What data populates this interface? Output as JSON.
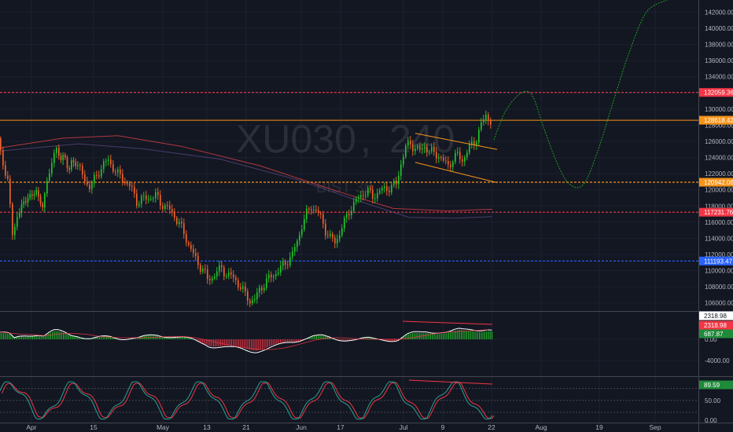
{
  "colors": {
    "background": "#131722",
    "grid": "#1c2030",
    "up": "#22c02a",
    "down": "#e8612c",
    "text": "#b2b5be",
    "red_line": "#f23645",
    "orange_line": "#f7931a",
    "blue_line": "#2962ff",
    "projection": "#1fa01f",
    "channel": "#f7931a"
  },
  "watermark": {
    "symbol": "XU030",
    "interval": "240",
    "exchange": "BIST 30"
  },
  "chart_data": [
    {
      "name": "price",
      "type": "line",
      "ylim": [
        105000,
        143500
      ],
      "y_ticks": [
        "142000.00",
        "140000.00",
        "138000.00",
        "136000.00",
        "134000.00",
        "132000.00",
        "130000.00",
        "128000.00",
        "126000.00",
        "124000.00",
        "122000.00",
        "120000.00",
        "118000.00",
        "116000.00",
        "114000.00",
        "112000.00",
        "110000.00",
        "108000.00",
        "106000.00"
      ],
      "x_ticks": [
        "Apr",
        "15",
        "May",
        "13",
        "21",
        "Jun",
        "17",
        "Jul",
        "9",
        "22",
        "Aug",
        "19",
        "Sep"
      ],
      "horizontal_levels": [
        {
          "value": 132059.36,
          "label": "132059.36",
          "color": "#f23645"
        },
        {
          "value": 128618.42,
          "label": "128618.42",
          "color": "#f7931a"
        },
        {
          "value": 120942.06,
          "label": "120942.06",
          "color": "#f7931a"
        },
        {
          "value": 117231.76,
          "label": "117231.76",
          "color": "#f23645"
        },
        {
          "value": 111193.47,
          "label": "111193.47",
          "color": "#2962ff"
        }
      ],
      "close_series": [
        [
          0,
          125800
        ],
        [
          6,
          123500
        ],
        [
          12,
          121000
        ],
        [
          18,
          114500
        ],
        [
          24,
          116800
        ],
        [
          32,
          118500
        ],
        [
          40,
          119200
        ],
        [
          48,
          119800
        ],
        [
          56,
          117800
        ],
        [
          62,
          121000
        ],
        [
          68,
          123800
        ],
        [
          74,
          124600
        ],
        [
          82,
          124000
        ],
        [
          90,
          122800
        ],
        [
          98,
          123600
        ],
        [
          104,
          122400
        ],
        [
          110,
          121200
        ],
        [
          116,
          120400
        ],
        [
          122,
          121200
        ],
        [
          128,
          122300
        ],
        [
          134,
          123200
        ],
        [
          140,
          123600
        ],
        [
          146,
          122800
        ],
        [
          152,
          121900
        ],
        [
          158,
          121400
        ],
        [
          164,
          120800
        ],
        [
          170,
          120000
        ],
        [
          176,
          118600
        ],
        [
          182,
          118800
        ],
        [
          188,
          118900
        ],
        [
          194,
          119100
        ],
        [
          200,
          119300
        ],
        [
          206,
          118400
        ],
        [
          212,
          118000
        ],
        [
          218,
          117500
        ],
        [
          224,
          116800
        ],
        [
          230,
          115800
        ],
        [
          236,
          114600
        ],
        [
          242,
          113300
        ],
        [
          248,
          112000
        ],
        [
          254,
          110800
        ],
        [
          260,
          110300
        ],
        [
          266,
          108800
        ],
        [
          272,
          109200
        ],
        [
          278,
          109900
        ],
        [
          284,
          110200
        ],
        [
          290,
          109600
        ],
        [
          296,
          109300
        ],
        [
          302,
          108800
        ],
        [
          308,
          108000
        ],
        [
          314,
          107000
        ],
        [
          320,
          106300
        ],
        [
          326,
          106400
        ],
        [
          332,
          107600
        ],
        [
          338,
          108400
        ],
        [
          344,
          109000
        ],
        [
          350,
          109500
        ],
        [
          356,
          110000
        ],
        [
          362,
          110600
        ],
        [
          368,
          111300
        ],
        [
          374,
          112000
        ],
        [
          380,
          113600
        ],
        [
          386,
          115600
        ],
        [
          392,
          117000
        ],
        [
          398,
          118000
        ],
        [
          404,
          117400
        ],
        [
          410,
          116600
        ],
        [
          416,
          115000
        ],
        [
          422,
          114000
        ],
        [
          428,
          113600
        ],
        [
          434,
          114600
        ],
        [
          440,
          116000
        ],
        [
          446,
          117400
        ],
        [
          452,
          118200
        ],
        [
          458,
          119000
        ],
        [
          464,
          119600
        ],
        [
          470,
          119800
        ],
        [
          476,
          119200
        ],
        [
          482,
          119600
        ],
        [
          488,
          120000
        ],
        [
          494,
          120200
        ],
        [
          500,
          120400
        ],
        [
          506,
          120700
        ],
        [
          512,
          123300
        ],
        [
          518,
          125300
        ],
        [
          524,
          125700
        ],
        [
          530,
          125200
        ],
        [
          536,
          124800
        ],
        [
          542,
          125400
        ],
        [
          548,
          124800
        ],
        [
          554,
          124500
        ],
        [
          560,
          124300
        ],
        [
          566,
          123500
        ],
        [
          572,
          123000
        ],
        [
          578,
          123800
        ],
        [
          584,
          124300
        ],
        [
          590,
          123700
        ],
        [
          596,
          124700
        ],
        [
          602,
          125600
        ],
        [
          608,
          126400
        ],
        [
          614,
          128000
        ],
        [
          620,
          129300
        ],
        [
          626,
          128500
        ]
      ],
      "projection": [
        [
          628,
          126200
        ],
        [
          642,
          129600
        ],
        [
          660,
          131800
        ],
        [
          676,
          131800
        ],
        [
          692,
          127500
        ],
        [
          708,
          123400
        ],
        [
          724,
          120700
        ],
        [
          742,
          120700
        ],
        [
          760,
          124800
        ],
        [
          780,
          131000
        ],
        [
          800,
          137000
        ],
        [
          822,
          142000
        ],
        [
          848,
          143500
        ]
      ],
      "moving_averages": [
        {
          "color": "#e8414c",
          "points": [
            [
              0,
              125200
            ],
            [
              80,
              126400
            ],
            [
              150,
              126700
            ],
            [
              230,
              125400
            ],
            [
              330,
              123000
            ],
            [
              430,
              119800
            ],
            [
              500,
              117700
            ],
            [
              570,
              117400
            ],
            [
              626,
              117600
            ]
          ]
        },
        {
          "color": "#5a4a82",
          "points": [
            [
              0,
              124800
            ],
            [
              100,
              125700
            ],
            [
              180,
              125100
            ],
            [
              280,
              123800
            ],
            [
              380,
              121200
            ],
            [
              460,
              118500
            ],
            [
              520,
              116600
            ],
            [
              580,
              116500
            ],
            [
              626,
              116700
            ]
          ]
        }
      ],
      "channel": [
        {
          "points": [
            [
              528,
              127000
            ],
            [
              632,
              125000
            ]
          ]
        },
        {
          "points": [
            [
              528,
              123400
            ],
            [
              632,
              120900
            ]
          ]
        }
      ]
    },
    {
      "name": "oscillator",
      "type": "bar",
      "badges": [
        {
          "label": "2318.98",
          "bg": "#ffffff",
          "fg": "#131722"
        },
        {
          "label": "2318.98",
          "bg": "#f23645",
          "fg": "#ffffff"
        },
        {
          "label": "687.87",
          "bg": "#1f8a3a",
          "fg": "#ffffff"
        }
      ],
      "y_ticks": [
        "0.00",
        "-4000.00"
      ]
    },
    {
      "name": "stochastic",
      "type": "line",
      "ylim": [
        0,
        100
      ],
      "badges": [
        {
          "label": "89.59",
          "bg": "#1f8a3a",
          "fg": "#ffffff"
        }
      ],
      "y_ticks": [
        "50.00",
        "0.00"
      ]
    }
  ]
}
